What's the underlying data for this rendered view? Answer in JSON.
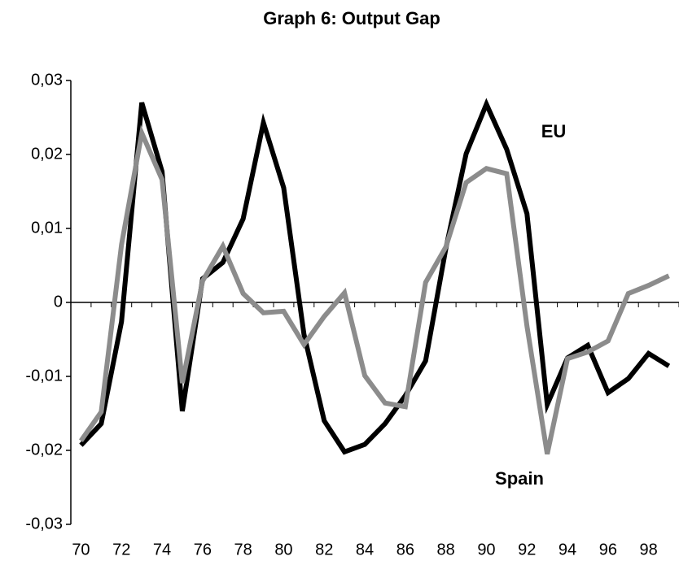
{
  "chart_data": {
    "type": "line",
    "title": "Graph 6: Output Gap",
    "categories": [
      "70",
      null,
      "72",
      null,
      "74",
      null,
      "76",
      null,
      "78",
      null,
      "80",
      null,
      "82",
      null,
      "84",
      null,
      "86",
      null,
      "88",
      null,
      "90",
      null,
      "92",
      null,
      "94",
      null,
      "96",
      null,
      "98",
      null
    ],
    "series": [
      {
        "name": "EU",
        "color": "#000000",
        "values": [
          -0.0193,
          -0.0164,
          -0.0026,
          0.027,
          0.0177,
          -0.0147,
          0.0032,
          0.0054,
          0.0113,
          0.0243,
          0.0155,
          -0.0043,
          -0.016,
          -0.0202,
          -0.0192,
          -0.0164,
          -0.0126,
          -0.0079,
          0.0073,
          0.0201,
          0.0268,
          0.0207,
          0.012,
          -0.0138,
          -0.0075,
          -0.0058,
          -0.0122,
          -0.0103,
          -0.0069,
          -0.0086
        ]
      },
      {
        "name": "Spain",
        "color": "#8c8c8c",
        "values": [
          -0.0187,
          -0.0148,
          0.0078,
          0.0229,
          0.0166,
          -0.0109,
          0.0029,
          0.0076,
          0.0012,
          -0.0014,
          -0.0012,
          -0.0057,
          -0.0019,
          0.0013,
          -0.0099,
          -0.0136,
          -0.0141,
          0.0027,
          0.0075,
          0.0162,
          0.0181,
          0.0174,
          -0.0032,
          -0.0205,
          -0.0076,
          -0.0067,
          -0.0052,
          0.0012,
          0.0023,
          0.0036
        ]
      }
    ],
    "ylim": [
      -0.03,
      0.03
    ],
    "yticks": [
      {
        "value": -0.03,
        "label": "-0,03"
      },
      {
        "value": -0.02,
        "label": "-0,02"
      },
      {
        "value": -0.01,
        "label": "-0,01"
      },
      0,
      {
        "value": 0.01,
        "label": "0,01"
      },
      {
        "value": 0.02,
        "label": "0,02"
      },
      {
        "value": 0.03,
        "label": "0,03"
      }
    ],
    "annotations": [
      "EU",
      "Spain"
    ]
  }
}
